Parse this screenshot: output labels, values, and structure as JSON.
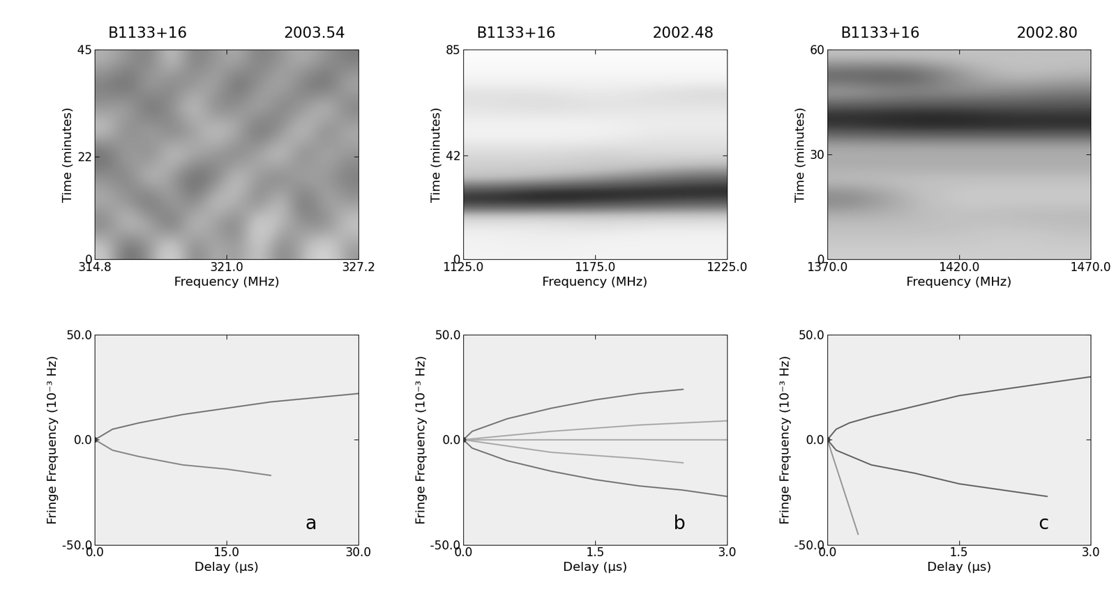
{
  "chart_data": [
    {
      "type": "heatmap",
      "title": "B1133+16",
      "subtitle": "2003.54",
      "x_label": "Frequency (MHz)",
      "y_label": "Time (minutes)",
      "xlim": [
        314.8,
        327.2
      ],
      "xticks": [
        314.8,
        321.0,
        327.2
      ],
      "ylim": [
        0,
        45
      ],
      "yticks": [
        0,
        22,
        45
      ],
      "cell_range": [
        0,
        1
      ],
      "cells": [
        [
          0.3,
          0.7,
          0.5,
          0.2,
          0.6,
          0.4,
          0.5,
          0.3,
          0.6,
          0.4,
          0.2,
          0.5
        ],
        [
          0.6,
          0.3,
          0.4,
          0.7,
          0.3,
          0.5,
          0.6,
          0.2,
          0.4,
          0.5,
          0.6,
          0.3
        ],
        [
          0.4,
          0.5,
          0.7,
          0.4,
          0.6,
          0.3,
          0.4,
          0.6,
          0.3,
          0.7,
          0.4,
          0.5
        ],
        [
          0.5,
          0.6,
          0.3,
          0.5,
          0.7,
          0.6,
          0.3,
          0.5,
          0.6,
          0.4,
          0.5,
          0.6
        ],
        [
          0.7,
          0.4,
          0.6,
          0.3,
          0.4,
          0.5,
          0.6,
          0.4,
          0.3,
          0.6,
          0.4,
          0.5
        ],
        [
          0.3,
          0.6,
          0.4,
          0.6,
          0.5,
          0.3,
          0.4,
          0.7,
          0.5,
          0.3,
          0.6,
          0.4
        ],
        [
          0.5,
          0.4,
          0.7,
          0.5,
          0.3,
          0.6,
          0.5,
          0.4,
          0.6,
          0.5,
          0.3,
          0.6
        ],
        [
          0.6,
          0.7,
          0.4,
          0.6,
          0.5,
          0.4,
          0.7,
          0.5,
          0.4,
          0.6,
          0.7,
          0.4
        ],
        [
          0.4,
          0.5,
          0.6,
          0.3,
          0.6,
          0.5,
          0.4,
          0.6,
          0.5,
          0.4,
          0.5,
          0.6
        ]
      ]
    },
    {
      "type": "heatmap",
      "title": "B1133+16",
      "subtitle": "2002.48",
      "x_label": "Frequency (MHz)",
      "y_label": "Time (minutes)",
      "xlim": [
        1125.0,
        1225.0
      ],
      "xticks": [
        1125.0,
        1175.0,
        1225.0
      ],
      "ylim": [
        0,
        85
      ],
      "yticks": [
        0,
        42,
        85
      ],
      "cell_range": [
        0,
        1
      ],
      "cells": [
        [
          0.1,
          0.1,
          0.1,
          0.1,
          0.1
        ],
        [
          0.1,
          0.15,
          0.1,
          0.1,
          0.1
        ],
        [
          0.15,
          0.15,
          0.2,
          0.15,
          0.15
        ],
        [
          0.3,
          0.3,
          0.3,
          0.3,
          0.3
        ],
        [
          0.85,
          0.85,
          0.8,
          0.75,
          0.7
        ],
        [
          0.8,
          0.9,
          0.9,
          0.9,
          0.9
        ],
        [
          0.35,
          0.4,
          0.5,
          0.6,
          0.7
        ],
        [
          0.3,
          0.3,
          0.3,
          0.35,
          0.4
        ],
        [
          0.25,
          0.25,
          0.3,
          0.25,
          0.25
        ],
        [
          0.15,
          0.15,
          0.15,
          0.2,
          0.2
        ],
        [
          0.1,
          0.1,
          0.1,
          0.15,
          0.15
        ],
        [
          0.15,
          0.15,
          0.15,
          0.15,
          0.15
        ],
        [
          0.2,
          0.25,
          0.2,
          0.2,
          0.2
        ],
        [
          0.2,
          0.2,
          0.15,
          0.2,
          0.25
        ],
        [
          0.1,
          0.1,
          0.1,
          0.1,
          0.1
        ],
        [
          0.05,
          0.05,
          0.05,
          0.05,
          0.05
        ],
        [
          0.03,
          0.03,
          0.03,
          0.03,
          0.03
        ]
      ]
    },
    {
      "type": "heatmap",
      "title": "B1133+16",
      "subtitle": "2002.80",
      "x_label": "Frequency (MHz)",
      "y_label": "Time (minutes)",
      "xlim": [
        1370.0,
        1470.0
      ],
      "xticks": [
        1370.0,
        1420.0,
        1470.0
      ],
      "ylim": [
        0,
        60
      ],
      "yticks": [
        0,
        30,
        60
      ],
      "cell_range": [
        0,
        1
      ],
      "cells": [
        [
          0.3,
          0.3,
          0.3,
          0.3,
          0.3
        ],
        [
          0.35,
          0.35,
          0.35,
          0.3,
          0.35
        ],
        [
          0.4,
          0.4,
          0.35,
          0.4,
          0.4
        ],
        [
          0.6,
          0.4,
          0.3,
          0.3,
          0.3
        ],
        [
          0.35,
          0.35,
          0.35,
          0.35,
          0.35
        ],
        [
          0.45,
          0.45,
          0.45,
          0.45,
          0.45
        ],
        [
          0.4,
          0.4,
          0.4,
          0.4,
          0.4
        ],
        [
          0.85,
          0.9,
          0.9,
          0.9,
          0.9
        ],
        [
          0.85,
          0.85,
          0.85,
          0.8,
          0.8
        ],
        [
          0.4,
          0.5,
          0.5,
          0.55,
          0.6
        ],
        [
          0.75,
          0.8,
          0.5,
          0.35,
          0.4
        ],
        [
          0.35,
          0.35,
          0.35,
          0.35,
          0.35
        ]
      ]
    },
    {
      "type": "line",
      "x_label": "Delay (μs)",
      "y_label": "Fringe Frequency (10⁻³ Hz)",
      "xlim": [
        0.0,
        30.0
      ],
      "xticks": [
        0.0,
        15.0,
        30.0
      ],
      "ylim": [
        -50.0,
        50.0
      ],
      "yticks": [
        -50.0,
        0.0,
        50.0
      ],
      "annotations": [
        {
          "text": "a"
        }
      ],
      "series": [
        {
          "color": "#777777",
          "line_style": "solid",
          "x": [
            0,
            2,
            5,
            10,
            15,
            20,
            25,
            30
          ],
          "values": [
            0,
            5,
            8,
            12,
            15,
            18,
            20,
            22
          ]
        },
        {
          "color": "#888888",
          "line_style": "solid",
          "x": [
            0,
            2,
            5,
            10,
            15,
            20
          ],
          "values": [
            0,
            -5,
            -8,
            -12,
            -14,
            -17
          ]
        },
        {
          "color": "#444444",
          "line_style": "none",
          "marker": "o",
          "x": [
            0
          ],
          "values": [
            0
          ]
        }
      ]
    },
    {
      "type": "line",
      "x_label": "Delay (μs)",
      "y_label": "Fringe Frequency (10⁻³ Hz)",
      "xlim": [
        0.0,
        3.0
      ],
      "xticks": [
        0.0,
        1.5,
        3.0
      ],
      "ylim": [
        -50.0,
        50.0
      ],
      "yticks": [
        -50.0,
        0.0,
        50.0
      ],
      "annotations": [
        {
          "text": "b"
        }
      ],
      "series": [
        {
          "color": "#777777",
          "line_style": "solid",
          "x": [
            0,
            0.1,
            0.5,
            1.0,
            1.5,
            2.0,
            2.5
          ],
          "values": [
            0,
            4,
            10,
            15,
            19,
            22,
            24
          ]
        },
        {
          "color": "#777777",
          "line_style": "solid",
          "x": [
            0,
            0.1,
            0.5,
            1.0,
            1.5,
            2.0,
            2.5,
            3.0
          ],
          "values": [
            0,
            -4,
            -10,
            -15,
            -19,
            -22,
            -24,
            -27
          ]
        },
        {
          "color": "#aaaaaa",
          "line_style": "solid",
          "x": [
            0,
            1.0,
            2.0,
            3.0
          ],
          "values": [
            0,
            4,
            7,
            9
          ]
        },
        {
          "color": "#aaaaaa",
          "line_style": "solid",
          "x": [
            0,
            1.5,
            3.0
          ],
          "values": [
            0,
            0,
            0
          ]
        },
        {
          "color": "#aaaaaa",
          "line_style": "solid",
          "x": [
            0,
            1.0,
            2.0,
            2.5
          ],
          "values": [
            0,
            -6,
            -9,
            -11
          ]
        },
        {
          "color": "#444444",
          "line_style": "none",
          "marker": "o",
          "x": [
            0
          ],
          "values": [
            0
          ]
        }
      ]
    },
    {
      "type": "line",
      "x_label": "Delay (μs)",
      "y_label": "Fringe Frequency (10⁻³ Hz)",
      "xlim": [
        0.0,
        3.0
      ],
      "xticks": [
        0.0,
        1.5,
        3.0
      ],
      "ylim": [
        -50.0,
        50.0
      ],
      "yticks": [
        -50.0,
        0.0,
        50.0
      ],
      "annotations": [
        {
          "text": "c"
        }
      ],
      "series": [
        {
          "color": "#666666",
          "line_style": "solid",
          "x": [
            0,
            0.1,
            0.25,
            0.5,
            1.0,
            1.5,
            2.0,
            2.5,
            3.0
          ],
          "values": [
            0,
            5,
            8,
            11,
            16,
            21,
            24,
            27,
            30
          ]
        },
        {
          "color": "#666666",
          "line_style": "solid",
          "x": [
            0,
            0.1,
            0.5,
            1.0,
            1.5,
            2.0,
            2.5
          ],
          "values": [
            0,
            -5,
            -12,
            -16,
            -21,
            -24,
            -27
          ]
        },
        {
          "color": "#999999",
          "line_style": "solid",
          "x": [
            0,
            0.35
          ],
          "values": [
            0,
            -45
          ]
        },
        {
          "color": "#444444",
          "line_style": "none",
          "marker": "o",
          "x": [
            0
          ],
          "values": [
            0
          ]
        }
      ]
    }
  ]
}
